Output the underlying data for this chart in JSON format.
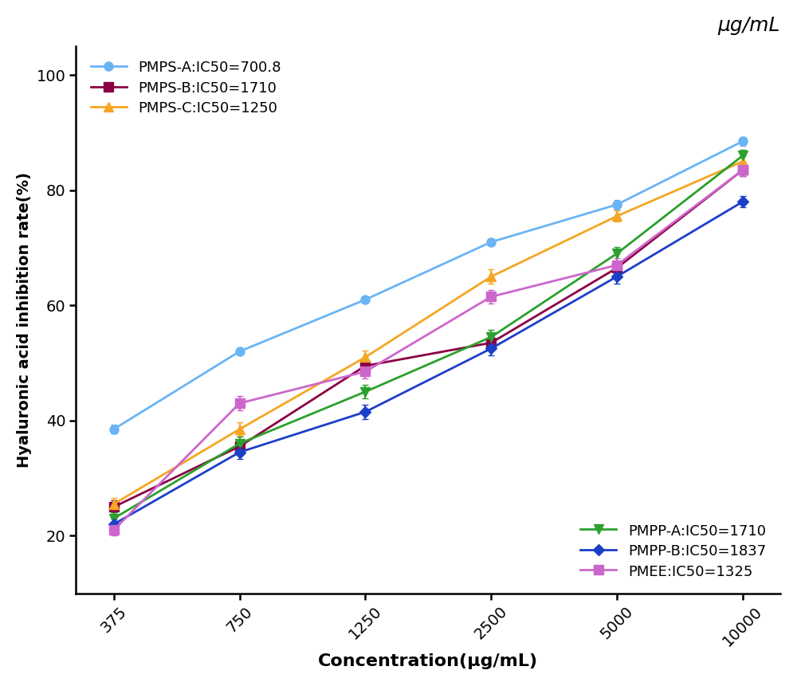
{
  "x_positions": [
    0,
    1,
    2,
    3,
    4,
    5
  ],
  "x_labels": [
    "375",
    "750",
    "1250",
    "2500",
    "5000",
    "10000"
  ],
  "series": [
    {
      "label": "PMPS-A:IC50=700.8",
      "color": "#6ab4f5",
      "marker": "o",
      "markersize": 8,
      "linewidth": 2.0,
      "values": [
        38.5,
        52.0,
        61.0,
        71.0,
        77.5,
        88.5
      ],
      "errors": [
        0.8,
        0.5,
        0.5,
        0.5,
        0.8,
        0.8
      ],
      "legend_group": 0
    },
    {
      "label": "PMPS-B:IC50=1710",
      "color": "#8b0045",
      "marker": "s",
      "markersize": 8,
      "linewidth": 2.0,
      "values": [
        25.0,
        35.5,
        49.5,
        53.5,
        66.5,
        83.5
      ],
      "errors": [
        1.2,
        1.2,
        1.2,
        1.2,
        1.2,
        1.0
      ],
      "legend_group": 0
    },
    {
      "label": "PMPS-C:IC50=1250",
      "color": "#f5a623",
      "marker": "^",
      "markersize": 8,
      "linewidth": 2.0,
      "values": [
        25.5,
        38.5,
        51.0,
        65.0,
        75.5,
        85.0
      ],
      "errors": [
        1.0,
        1.2,
        1.2,
        1.2,
        1.0,
        1.0
      ],
      "legend_group": 0
    },
    {
      "label": "PMPP-A:IC50=1710",
      "color": "#2ca02c",
      "marker": "v",
      "markersize": 8,
      "linewidth": 2.0,
      "values": [
        23.0,
        36.0,
        45.0,
        54.5,
        69.0,
        86.0
      ],
      "errors": [
        1.0,
        1.2,
        1.2,
        1.2,
        1.2,
        1.0
      ],
      "legend_group": 1
    },
    {
      "label": "PMPP-B:IC50=1837",
      "color": "#1c3fc8",
      "marker": "D",
      "markersize": 7,
      "linewidth": 2.0,
      "values": [
        22.0,
        34.5,
        41.5,
        52.5,
        65.0,
        78.0
      ],
      "errors": [
        1.0,
        1.2,
        1.2,
        1.2,
        1.2,
        1.0
      ],
      "legend_group": 1
    },
    {
      "label": "PMEE:IC50=1325",
      "color": "#cc66cc",
      "marker": "s",
      "markersize": 8,
      "linewidth": 2.0,
      "values": [
        21.0,
        43.0,
        48.5,
        61.5,
        67.0,
        83.5
      ],
      "errors": [
        1.0,
        1.2,
        1.2,
        1.2,
        1.2,
        1.0
      ],
      "legend_group": 1
    }
  ],
  "xlabel": "Concentration(μg/mL)",
  "ylabel": "Hyaluronic acid inhibition rate(%)",
  "ylim": [
    10,
    105
  ],
  "yticks": [
    20,
    40,
    60,
    80,
    100
  ],
  "unit_label": "μg/mL",
  "background_color": "#ffffff"
}
